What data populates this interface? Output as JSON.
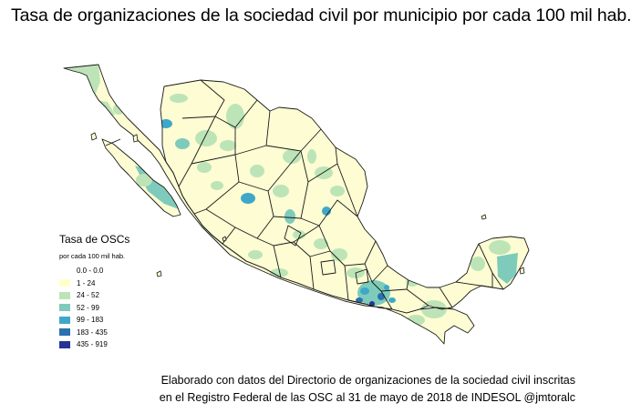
{
  "title": "Tasa de organizaciones de la sociedad civil por municipio por cada 100 mil hab.",
  "legend": {
    "title": "Tasa de OSCs",
    "subtitle": "por cada 100 mil hab.",
    "classes": [
      {
        "label": "0.0 - 0.0",
        "color": "#ffffff"
      },
      {
        "label": "1 - 24",
        "color": "#ffffcc"
      },
      {
        "label": "24 - 52",
        "color": "#bde4b7"
      },
      {
        "label": "52 - 99",
        "color": "#7ecbbb"
      },
      {
        "label": "99 - 183",
        "color": "#3fa8c8"
      },
      {
        "label": "183 - 435",
        "color": "#2b70b0"
      },
      {
        "label": "435 - 919",
        "color": "#253494"
      }
    ]
  },
  "credits": {
    "line1": "Elaborado con datos del Directorio de organizaciones de la sociedad civil inscritas",
    "line2": "en el Registro Federal de las OSC al 31 de mayo de 2018 de INDESOL  @jmtoralc"
  },
  "map": {
    "land_color": "#fdfcd3",
    "border_color": "#1a1a1a",
    "region": "México"
  }
}
